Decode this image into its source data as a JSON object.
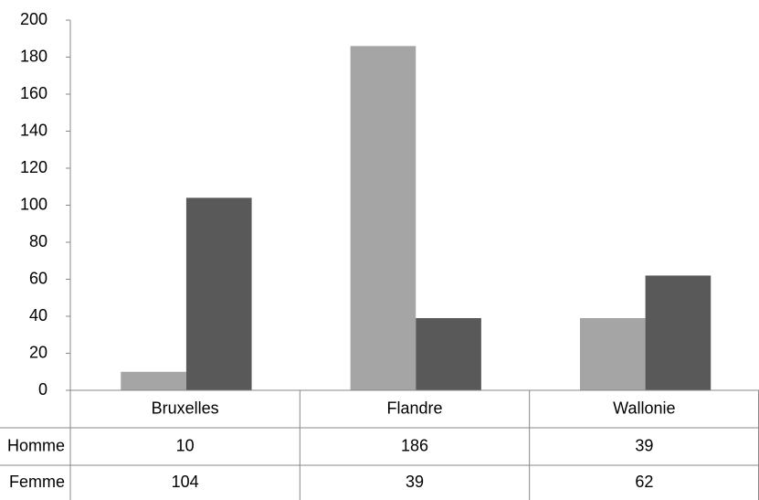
{
  "chart_data": {
    "type": "bar",
    "categories": [
      "Bruxelles",
      "Flandre",
      "Wallonie"
    ],
    "series": [
      {
        "name": "Homme",
        "color": "#a5a5a5",
        "values": [
          10,
          186,
          39
        ]
      },
      {
        "name": "Femme",
        "color": "#595959",
        "values": [
          104,
          39,
          62
        ]
      }
    ],
    "ylim": [
      0,
      200
    ],
    "yticks": [
      0,
      20,
      40,
      60,
      80,
      100,
      120,
      140,
      160,
      180,
      200
    ],
    "data_table": true
  }
}
